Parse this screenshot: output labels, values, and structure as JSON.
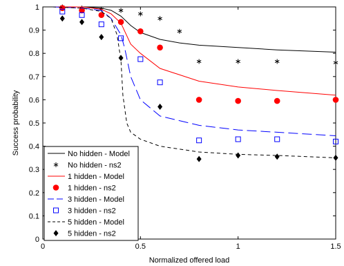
{
  "chart_data": {
    "type": "line",
    "title": "",
    "xlabel": "Normalized offered load",
    "ylabel": "Success probability",
    "xlim": [
      0,
      1.5
    ],
    "ylim": [
      0,
      1
    ],
    "xticks": [
      0,
      0.5,
      1,
      1.5
    ],
    "xtick_labels": [
      "0",
      "0.5",
      "1",
      "1.5"
    ],
    "yticks": [
      0,
      0.1,
      0.2,
      0.3,
      0.4,
      0.5,
      0.6,
      0.7,
      0.8,
      0.9,
      1
    ],
    "ytick_labels": [
      "0",
      "0.1",
      "0.2",
      "0.3",
      "0.4",
      "0.5",
      "0.6",
      "0.7",
      "0.8",
      "0.9",
      "1"
    ],
    "grid": false,
    "legend_position": "bottom-left",
    "series": [
      {
        "name": "No hidden - Model",
        "kind": "line",
        "style": "solid",
        "color": "#000000",
        "points": [
          [
            0.05,
            1.0
          ],
          [
            0.2,
            1.0
          ],
          [
            0.3,
            0.995
          ],
          [
            0.35,
            0.985
          ],
          [
            0.4,
            0.96
          ],
          [
            0.45,
            0.92
          ],
          [
            0.5,
            0.89
          ],
          [
            0.6,
            0.86
          ],
          [
            0.7,
            0.845
          ],
          [
            0.8,
            0.835
          ],
          [
            1.0,
            0.825
          ],
          [
            1.2,
            0.815
          ],
          [
            1.5,
            0.805
          ]
        ]
      },
      {
        "name": "No hidden - ns2",
        "kind": "marker",
        "marker": "asterisk",
        "color": "#000000",
        "points": [
          [
            0.1,
            1.0
          ],
          [
            0.2,
            0.995
          ],
          [
            0.3,
            0.99
          ],
          [
            0.4,
            0.985
          ],
          [
            0.5,
            0.97
          ],
          [
            0.6,
            0.95
          ],
          [
            0.7,
            0.895
          ],
          [
            0.8,
            0.765
          ],
          [
            1.0,
            0.765
          ],
          [
            1.2,
            0.765
          ],
          [
            1.5,
            0.76
          ]
        ]
      },
      {
        "name": "1 hidden - Model",
        "kind": "line",
        "style": "solid",
        "color": "#ff0000",
        "points": [
          [
            0.05,
            1.0
          ],
          [
            0.2,
            1.0
          ],
          [
            0.3,
            0.99
          ],
          [
            0.35,
            0.97
          ],
          [
            0.4,
            0.93
          ],
          [
            0.45,
            0.84
          ],
          [
            0.5,
            0.8
          ],
          [
            0.6,
            0.735
          ],
          [
            0.8,
            0.68
          ],
          [
            1.0,
            0.655
          ],
          [
            1.2,
            0.64
          ],
          [
            1.5,
            0.62
          ]
        ]
      },
      {
        "name": "1 hidden - ns2",
        "kind": "marker",
        "marker": "filled-circle",
        "color": "#ff0000",
        "points": [
          [
            0.1,
            0.995
          ],
          [
            0.2,
            0.985
          ],
          [
            0.3,
            0.965
          ],
          [
            0.4,
            0.935
          ],
          [
            0.5,
            0.895
          ],
          [
            0.6,
            0.825
          ],
          [
            0.8,
            0.6
          ],
          [
            1.0,
            0.595
          ],
          [
            1.2,
            0.595
          ],
          [
            1.5,
            0.6
          ]
        ]
      },
      {
        "name": "3 hidden - Model",
        "kind": "line",
        "style": "long-dash",
        "color": "#0000ff",
        "points": [
          [
            0.05,
            1.0
          ],
          [
            0.2,
            0.995
          ],
          [
            0.3,
            0.985
          ],
          [
            0.35,
            0.95
          ],
          [
            0.4,
            0.88
          ],
          [
            0.42,
            0.82
          ],
          [
            0.45,
            0.7
          ],
          [
            0.5,
            0.6
          ],
          [
            0.6,
            0.53
          ],
          [
            0.8,
            0.49
          ],
          [
            1.0,
            0.47
          ],
          [
            1.2,
            0.46
          ],
          [
            1.5,
            0.445
          ]
        ]
      },
      {
        "name": "3 hidden - ns2",
        "kind": "marker",
        "marker": "open-square",
        "color": "#0000ff",
        "points": [
          [
            0.1,
            0.98
          ],
          [
            0.2,
            0.965
          ],
          [
            0.3,
            0.925
          ],
          [
            0.4,
            0.865
          ],
          [
            0.5,
            0.775
          ],
          [
            0.6,
            0.675
          ],
          [
            0.8,
            0.425
          ],
          [
            1.0,
            0.43
          ],
          [
            1.2,
            0.43
          ],
          [
            1.5,
            0.42
          ]
        ]
      },
      {
        "name": "5 hidden - Model",
        "kind": "line",
        "style": "short-dash",
        "color": "#000000",
        "points": [
          [
            0.05,
            1.0
          ],
          [
            0.2,
            0.995
          ],
          [
            0.3,
            0.98
          ],
          [
            0.35,
            0.95
          ],
          [
            0.38,
            0.88
          ],
          [
            0.4,
            0.77
          ],
          [
            0.41,
            0.62
          ],
          [
            0.43,
            0.5
          ],
          [
            0.45,
            0.46
          ],
          [
            0.5,
            0.43
          ],
          [
            0.6,
            0.4
          ],
          [
            0.8,
            0.375
          ],
          [
            1.0,
            0.365
          ],
          [
            1.2,
            0.36
          ],
          [
            1.5,
            0.35
          ]
        ]
      },
      {
        "name": "5 hidden - ns2",
        "kind": "marker",
        "marker": "filled-diamond",
        "color": "#000000",
        "points": [
          [
            0.1,
            0.95
          ],
          [
            0.2,
            0.935
          ],
          [
            0.3,
            0.87
          ],
          [
            0.4,
            0.78
          ],
          [
            0.6,
            0.57
          ],
          [
            0.8,
            0.345
          ],
          [
            1.0,
            0.36
          ],
          [
            1.2,
            0.355
          ],
          [
            1.5,
            0.35
          ]
        ]
      }
    ]
  }
}
